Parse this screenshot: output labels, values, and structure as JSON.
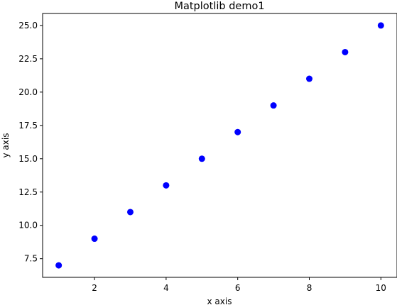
{
  "chart_data": {
    "type": "scatter",
    "title": "Matplotlib demo1",
    "xlabel": "x axis",
    "ylabel": "y axis",
    "x": [
      1,
      2,
      3,
      4,
      5,
      6,
      7,
      8,
      9,
      10
    ],
    "y": [
      7,
      9,
      11,
      13,
      15,
      17,
      19,
      21,
      23,
      25
    ],
    "xlim": [
      0.55,
      10.45
    ],
    "ylim": [
      6.1,
      25.9
    ],
    "xticks": [
      2,
      4,
      6,
      8,
      10
    ],
    "xtick_labels": [
      "2",
      "4",
      "6",
      "8",
      "10"
    ],
    "yticks": [
      7.5,
      10.0,
      12.5,
      15.0,
      17.5,
      20.0,
      22.5,
      25.0
    ],
    "ytick_labels": [
      "7.5",
      "10.0",
      "12.5",
      "15.0",
      "17.5",
      "20.0",
      "22.5",
      "25.0"
    ],
    "marker_color": "#0000ff",
    "grid": false,
    "legend": false
  }
}
